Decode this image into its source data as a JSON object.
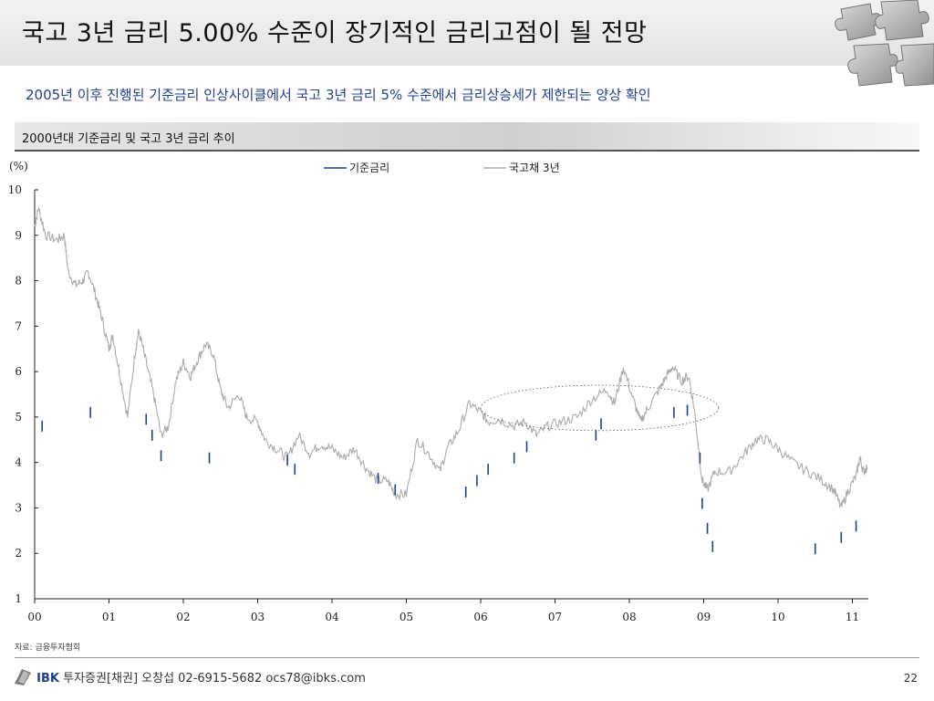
{
  "header": {
    "title": "국고 3년 금리 5.00% 수준이 장기적인 금리고점이 될 전망",
    "puzzle_icon": "puzzle-pieces-icon"
  },
  "subtitle": "2005년 이후 진행된 기준금리 인상사이클에서 국고 3년 금리 5% 수준에서 금리상승세가 제한되는 양상 확인",
  "section_title": "2000년대 기준금리 및 국고 3년 금리 추이",
  "source": "자료: 금융투자협회",
  "footer": {
    "brand": "IBK",
    "text": "투자증권[채권] 오창섭 02-6915-5682 ocs78@ibks.com",
    "page": "22",
    "logo_icon": "ibk-logo-icon"
  },
  "colors": {
    "policy_rate": "#1f3f8f",
    "treasury_3y": "#aaaaaa",
    "subtitle": "#1f3f8f"
  },
  "chart_data": {
    "type": "line",
    "ylabel": "(%)",
    "ylim": [
      1,
      10
    ],
    "yticks": [
      "1",
      "2",
      "3",
      "4",
      "5",
      "6",
      "7",
      "8",
      "9",
      "10"
    ],
    "xticks": [
      "00",
      "01",
      "02",
      "03",
      "04",
      "05",
      "06",
      "07",
      "08",
      "09",
      "10",
      "11"
    ],
    "xlim": [
      0,
      11.2
    ],
    "legend_position": "top-center",
    "series": [
      {
        "name": "기준금리",
        "style": "short blue segments",
        "points": [
          [
            0.1,
            4.8
          ],
          [
            0.75,
            5.1
          ],
          [
            1.5,
            4.95
          ],
          [
            1.58,
            4.6
          ],
          [
            1.7,
            4.15
          ],
          [
            2.35,
            4.1
          ],
          [
            3.4,
            4.05
          ],
          [
            3.5,
            3.85
          ],
          [
            4.62,
            3.65
          ],
          [
            4.85,
            3.4
          ],
          [
            5.8,
            3.35
          ],
          [
            5.95,
            3.6
          ],
          [
            6.1,
            3.85
          ],
          [
            6.45,
            4.1
          ],
          [
            6.62,
            4.35
          ],
          [
            7.55,
            4.6
          ],
          [
            7.62,
            4.85
          ],
          [
            8.6,
            5.1
          ],
          [
            8.78,
            5.15
          ],
          [
            8.95,
            4.1
          ],
          [
            8.98,
            3.1
          ],
          [
            9.05,
            2.55
          ],
          [
            9.12,
            2.15
          ],
          [
            10.5,
            2.1
          ],
          [
            10.85,
            2.35
          ],
          [
            11.05,
            2.6
          ]
        ]
      },
      {
        "name": "국고채 3년",
        "points": [
          [
            0.0,
            9.2
          ],
          [
            0.05,
            9.6
          ],
          [
            0.15,
            9.0
          ],
          [
            0.3,
            8.9
          ],
          [
            0.4,
            9.0
          ],
          [
            0.45,
            8.2
          ],
          [
            0.55,
            7.9
          ],
          [
            0.65,
            8.0
          ],
          [
            0.72,
            8.2
          ],
          [
            0.82,
            7.7
          ],
          [
            0.9,
            7.2
          ],
          [
            1.0,
            6.5
          ],
          [
            1.05,
            6.8
          ],
          [
            1.15,
            5.9
          ],
          [
            1.25,
            5.0
          ],
          [
            1.35,
            6.4
          ],
          [
            1.4,
            6.9
          ],
          [
            1.5,
            6.2
          ],
          [
            1.6,
            5.5
          ],
          [
            1.7,
            4.6
          ],
          [
            1.8,
            4.8
          ],
          [
            1.9,
            5.8
          ],
          [
            2.0,
            6.2
          ],
          [
            2.1,
            5.9
          ],
          [
            2.2,
            6.3
          ],
          [
            2.3,
            6.6
          ],
          [
            2.4,
            6.4
          ],
          [
            2.5,
            5.6
          ],
          [
            2.6,
            5.2
          ],
          [
            2.75,
            5.5
          ],
          [
            2.85,
            5.0
          ],
          [
            3.0,
            4.9
          ],
          [
            3.1,
            4.5
          ],
          [
            3.25,
            4.3
          ],
          [
            3.4,
            4.1
          ],
          [
            3.55,
            4.6
          ],
          [
            3.7,
            4.2
          ],
          [
            3.85,
            4.4
          ],
          [
            4.0,
            4.3
          ],
          [
            4.15,
            4.1
          ],
          [
            4.3,
            4.3
          ],
          [
            4.45,
            3.9
          ],
          [
            4.6,
            3.6
          ],
          [
            4.75,
            3.6
          ],
          [
            4.85,
            3.3
          ],
          [
            5.0,
            3.3
          ],
          [
            5.15,
            4.5
          ],
          [
            5.3,
            4.2
          ],
          [
            5.45,
            3.8
          ],
          [
            5.55,
            4.3
          ],
          [
            5.7,
            4.7
          ],
          [
            5.85,
            5.3
          ],
          [
            6.0,
            5.1
          ],
          [
            6.1,
            4.9
          ],
          [
            6.25,
            4.95
          ],
          [
            6.45,
            4.8
          ],
          [
            6.6,
            4.9
          ],
          [
            6.75,
            4.6
          ],
          [
            6.9,
            4.8
          ],
          [
            7.1,
            4.9
          ],
          [
            7.3,
            5.0
          ],
          [
            7.5,
            5.4
          ],
          [
            7.7,
            5.6
          ],
          [
            7.8,
            5.3
          ],
          [
            7.92,
            6.1
          ],
          [
            8.05,
            5.4
          ],
          [
            8.15,
            4.9
          ],
          [
            8.25,
            5.2
          ],
          [
            8.4,
            5.6
          ],
          [
            8.5,
            5.9
          ],
          [
            8.58,
            6.1
          ],
          [
            8.7,
            5.8
          ],
          [
            8.8,
            5.9
          ],
          [
            8.88,
            5.1
          ],
          [
            8.98,
            3.6
          ],
          [
            9.05,
            3.4
          ],
          [
            9.15,
            3.8
          ],
          [
            9.35,
            3.8
          ],
          [
            9.55,
            4.2
          ],
          [
            9.7,
            4.5
          ],
          [
            9.85,
            4.5
          ],
          [
            10.0,
            4.3
          ],
          [
            10.2,
            4.0
          ],
          [
            10.4,
            3.8
          ],
          [
            10.6,
            3.6
          ],
          [
            10.75,
            3.4
          ],
          [
            10.85,
            3.0
          ],
          [
            10.95,
            3.4
          ],
          [
            11.05,
            3.7
          ],
          [
            11.1,
            4.1
          ],
          [
            11.15,
            3.8
          ],
          [
            11.2,
            3.9
          ]
        ]
      }
    ],
    "annotation": {
      "type": "dotted-ellipse",
      "center": [
        7.6,
        5.2
      ],
      "rx_years": 1.6,
      "ry_pct": 0.5
    }
  }
}
